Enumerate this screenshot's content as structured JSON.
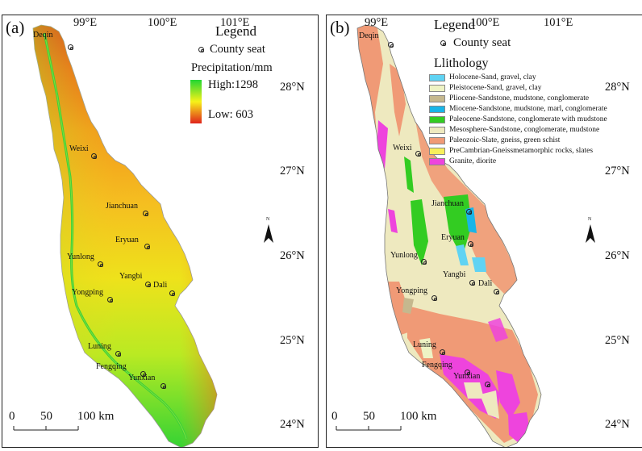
{
  "top_axis": {
    "lon_labels": [
      "99°E",
      "100°E",
      "101°E"
    ]
  },
  "right_axis": {
    "lat_labels": [
      "28°N",
      "27°N",
      "26°N",
      "25°N",
      "24°N"
    ]
  },
  "panel_a": {
    "label": "(a)",
    "legend_title": "Legend",
    "county_seat_label": "County seat",
    "precip_title": "Precipitation/mm",
    "high_label": "High:1298",
    "low_label": "Low: 603",
    "ramp_colors": {
      "high": "#22d633",
      "mid": "#f7f219",
      "low": "#e0231b"
    },
    "scale": {
      "ticks": [
        "0",
        "50",
        "100 km"
      ]
    },
    "north_label": "N"
  },
  "panel_b": {
    "label": "(b)",
    "legend_title": "Legend",
    "county_seat_label": "County seat",
    "lithology_title": "Llithology",
    "lithology": [
      {
        "label": "Holocene-Sand, gravel, clay",
        "color": "#5fd3f3"
      },
      {
        "label": "Pleistocene-Sand, gravel, clay",
        "color": "#eef3c4"
      },
      {
        "label": "Pliocene-Sandstone, mudstone, conglomerate",
        "color": "#c5b88e"
      },
      {
        "label": "Miocene-Sandstone, mudstone, marl, conglomerate",
        "color": "#19b5e8"
      },
      {
        "label": "Paleocene-Sandstone, conglomerate with mudstone",
        "color": "#33cc22"
      },
      {
        "label": "Mesosphere-Sandstone, conglomerate, mudstone",
        "color": "#eee9bf"
      },
      {
        "label": "Paleozoic-Slate, gneiss, green schist",
        "color": "#f09a76"
      },
      {
        "label": "PreCambrian-Gneissmetamorphic rocks, slates",
        "color": "#f7ef5b"
      },
      {
        "label": "Granite, diorite",
        "color": "#ee44dd"
      }
    ],
    "scale": {
      "ticks": [
        "0",
        "50",
        "100 km"
      ]
    },
    "north_label": "N"
  },
  "cities": [
    "Deqin",
    "Weixi",
    "Jianchuan",
    "Eryuan",
    "Yunlong",
    "Yangbi",
    "Dali",
    "Yongping",
    "Luning",
    "Fengqing",
    "Yunxian"
  ]
}
